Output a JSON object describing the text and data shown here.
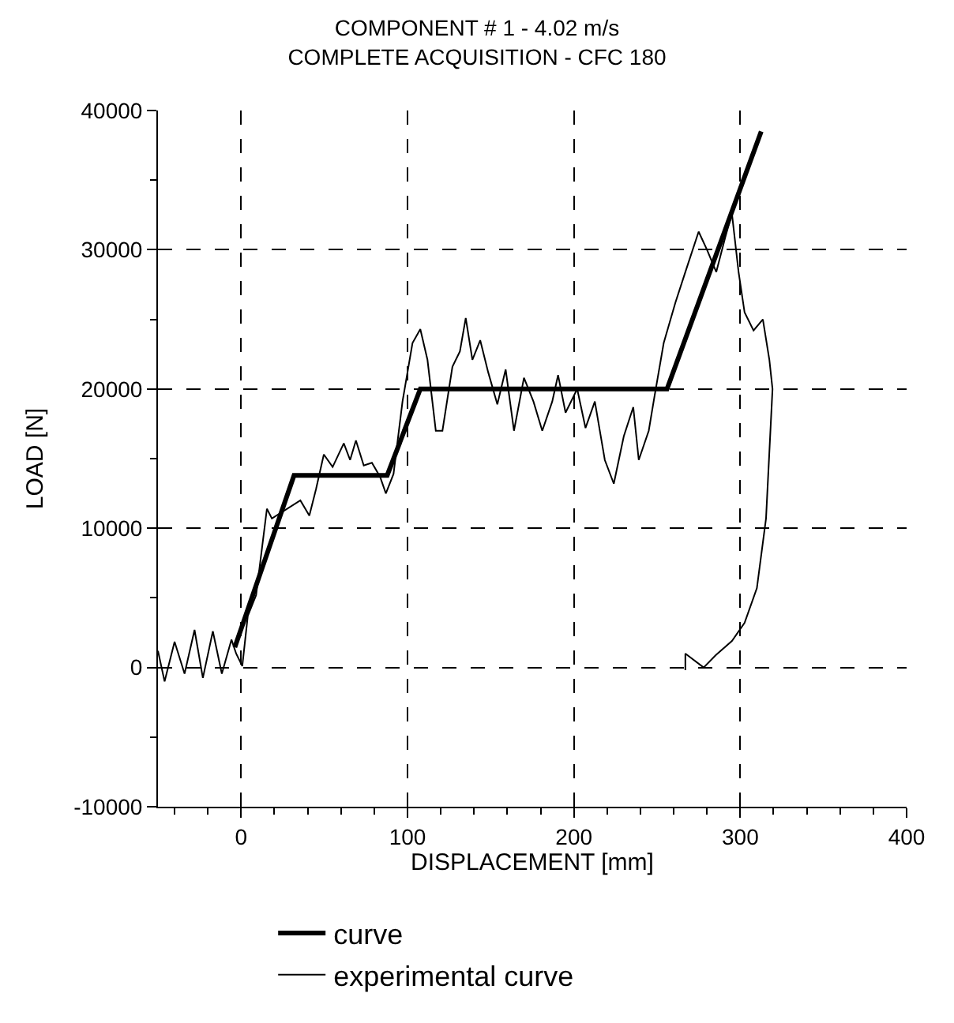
{
  "chart_data": {
    "type": "line",
    "title": "COMPONENT # 1 - 4.02 m/s\nCOMPLETE ACQUISITION - CFC 180",
    "xlabel": "DISPLACEMENT [mm]",
    "ylabel": "LOAD [N]",
    "xlim": [
      -50,
      400
    ],
    "xticks": [
      0,
      100,
      200,
      300,
      400
    ],
    "ylim": [
      -10000,
      40000
    ],
    "yticks": [
      -10000,
      0,
      10000,
      20000,
      30000,
      40000
    ],
    "grid": true,
    "legend": "bottom",
    "line_style": "solid",
    "series": [
      {
        "name": "curve",
        "color": "#000000",
        "x": [
          -3.8,
          31.8,
          87.8,
          107.7,
          256,
          312.6
        ],
        "values": [
          1450,
          13800,
          13800,
          20000,
          20000,
          38500
        ]
      },
      {
        "name": "experimental curve",
        "color": "#000000",
        "x": [
          -50,
          -46,
          -40,
          -34,
          -28,
          -23,
          -17,
          -11.6,
          -5.8,
          -3,
          0.7,
          4,
          9,
          15.5,
          18.5,
          35.6,
          41,
          45,
          49.7,
          55,
          61.7,
          65.5,
          69,
          73.7,
          78.6,
          83.5,
          87,
          91.6,
          97,
          103,
          107.7,
          112,
          117,
          121,
          127,
          131.5,
          135,
          139,
          143.7,
          148.5,
          154,
          159,
          164,
          170,
          175.7,
          181,
          187,
          190.5,
          195,
          202,
          207,
          212.6,
          218.6,
          224,
          230,
          235.7,
          239,
          245,
          248.5,
          254,
          261,
          267,
          275,
          280,
          285.6,
          291,
          295,
          299,
          302.6,
          308,
          313.6,
          317.5,
          319.4,
          315.5,
          310,
          302.6,
          295,
          285.4,
          278,
          267,
          267
        ],
        "values": [
          1200,
          -1000,
          1850,
          -450,
          2700,
          -750,
          2600,
          -450,
          2000,
          1000,
          100,
          3700,
          5200,
          11400,
          10700,
          12000,
          10900,
          12800,
          15300,
          14400,
          16100,
          14900,
          16300,
          14500,
          14700,
          13700,
          12500,
          13900,
          19100,
          23300,
          24300,
          22100,
          17000,
          17000,
          21600,
          22700,
          25100,
          22100,
          23500,
          21200,
          18900,
          21400,
          17000,
          20800,
          19100,
          17000,
          19100,
          21000,
          18300,
          20000,
          17200,
          19100,
          14900,
          13200,
          16600,
          18700,
          14900,
          17000,
          19500,
          23300,
          26200,
          28400,
          31300,
          30000,
          28400,
          30900,
          32600,
          28400,
          25500,
          24200,
          25000,
          22100,
          20000,
          10700,
          5700,
          3200,
          1900,
          900,
          0,
          1000,
          -200
        ]
      }
    ]
  }
}
